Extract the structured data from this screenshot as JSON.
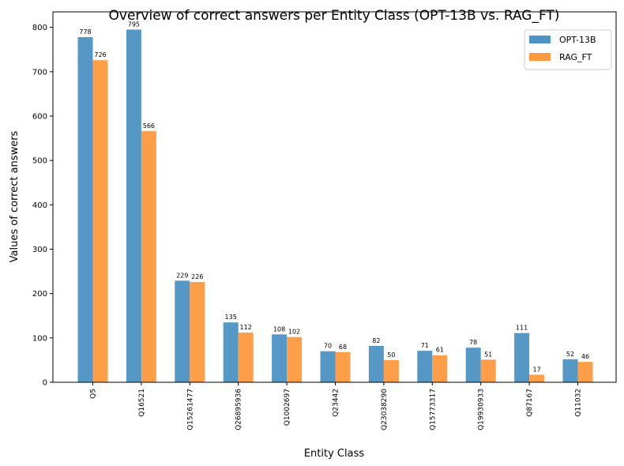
{
  "chart_data": {
    "type": "bar",
    "title": "Overview of correct answers per Entity Class (OPT-13B vs. RAG_FT)",
    "xlabel": "Entity Class",
    "ylabel": "Values of correct answers",
    "categories": [
      "Q5",
      "Q16521",
      "Q15261477",
      "Q26895936",
      "Q1002697",
      "Q23442",
      "Q23038290",
      "Q15773317",
      "Q19930933",
      "Q87167",
      "Q11032"
    ],
    "series": [
      {
        "name": "OPT-13B",
        "color": "#4c92c3",
        "values": [
          778,
          795,
          229,
          135,
          108,
          70,
          82,
          71,
          78,
          111,
          52
        ]
      },
      {
        "name": "RAG_FT",
        "color": "#ff993f",
        "values": [
          726,
          566,
          226,
          112,
          102,
          68,
          50,
          61,
          51,
          17,
          46
        ]
      }
    ],
    "ylim": [
      0,
      835
    ],
    "yticks": [
      0,
      100,
      200,
      300,
      400,
      500,
      600,
      700,
      800
    ],
    "grid": false,
    "legend_position": "top-right"
  }
}
